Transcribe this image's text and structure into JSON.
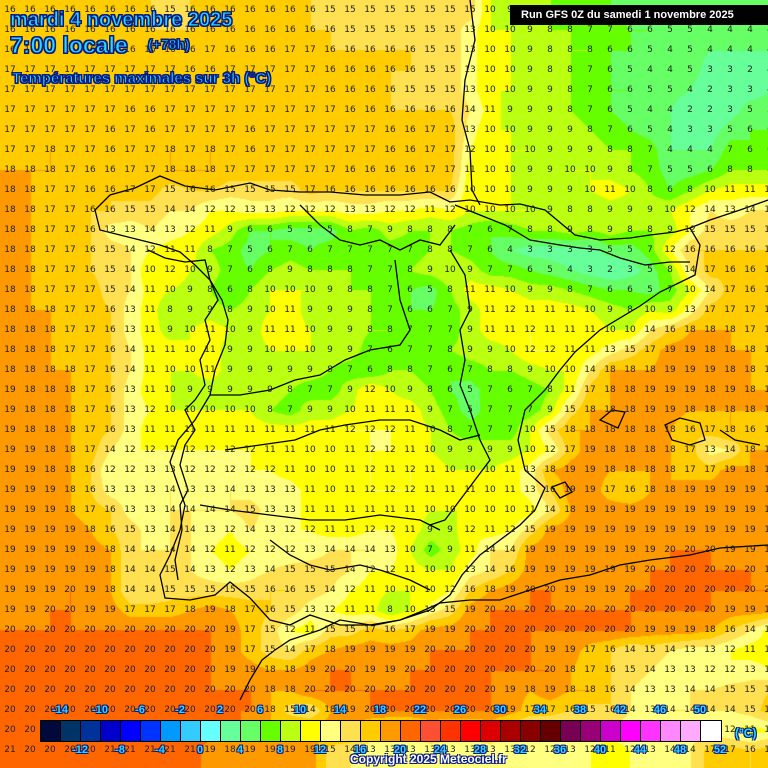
{
  "header": {
    "date": "mardi 4 novembre 2025",
    "time": "7:00 locale",
    "lead": "(+78h)",
    "parameter": "Températures maximales sur 3h (°C)",
    "run": "Run GFS 0Z du samedi 1 novembre 2025"
  },
  "footer": {
    "copyright": "Copyright 2025 Meteociel.fr",
    "unit": "(°C)"
  },
  "legend": {
    "colors": [
      "#000a3a",
      "#003366",
      "#003399",
      "#0000cc",
      "#0000ff",
      "#0033ff",
      "#0099ff",
      "#33ccff",
      "#66ffff",
      "#66ff99",
      "#66ff66",
      "#66ff00",
      "#bbff11",
      "#ffff00",
      "#ffff80",
      "#ffe050",
      "#ffcc00",
      "#ff9900",
      "#ff6600",
      "#ff4f33",
      "#ff3300",
      "#ff0000",
      "#dd0000",
      "#aa0000",
      "#880000",
      "#660000",
      "#770055",
      "#990077",
      "#cc00cc",
      "#ff00ff",
      "#ff33ff",
      "#ff88ff",
      "#ffaaff",
      "#ffffff"
    ],
    "top_labels": [
      "-14",
      "-10",
      "-6",
      "-2",
      "2",
      "6",
      "10",
      "14",
      "18",
      "22",
      "26",
      "30",
      "34",
      "38",
      "42",
      "46",
      "50"
    ],
    "bottom_labels": [
      "-12",
      "-8",
      "-4",
      "0",
      "4",
      "8",
      "12",
      "16",
      "20",
      "24",
      "28",
      "32",
      "36",
      "40",
      "44",
      "48",
      "52"
    ]
  },
  "chart_data": {
    "type": "heatmap",
    "title": "Températures maximales sur 3h (°C)",
    "subtitle": "mardi 4 novembre 2025 7:00 locale (+78h) — Run GFS 0Z du samedi 1 novembre 2025",
    "region": "Iberian Peninsula",
    "grid_spacing_px": 20,
    "cols": 39,
    "rows": 38,
    "values": [
      [
        16,
        16,
        16,
        16,
        16,
        16,
        16,
        16,
        15,
        16,
        16,
        16,
        16,
        16,
        16,
        16,
        15,
        15,
        15,
        15,
        15,
        15,
        15,
        15,
        10,
        9,
        8,
        8,
        7,
        7,
        6,
        5,
        5,
        5,
        5,
        5,
        5,
        4,
        4
      ],
      [
        16,
        16,
        16,
        16,
        16,
        16,
        16,
        16,
        16,
        16,
        16,
        16,
        16,
        16,
        16,
        16,
        16,
        15,
        15,
        15,
        15,
        15,
        15,
        13,
        10,
        10,
        9,
        8,
        8,
        7,
        7,
        6,
        6,
        5,
        5,
        4,
        4,
        4,
        4
      ],
      [
        16,
        16,
        16,
        16,
        16,
        16,
        16,
        16,
        16,
        16,
        17,
        16,
        16,
        16,
        17,
        17,
        16,
        16,
        16,
        16,
        16,
        15,
        15,
        13,
        10,
        10,
        9,
        8,
        8,
        8,
        6,
        6,
        5,
        4,
        5,
        4,
        4,
        4,
        4
      ],
      [
        17,
        17,
        17,
        17,
        17,
        17,
        17,
        17,
        17,
        16,
        16,
        17,
        17,
        17,
        17,
        17,
        16,
        16,
        16,
        16,
        16,
        15,
        15,
        13,
        10,
        10,
        9,
        8,
        8,
        7,
        6,
        5,
        4,
        4,
        5,
        3,
        3,
        2,
        4
      ],
      [
        17,
        17,
        17,
        17,
        17,
        17,
        17,
        17,
        17,
        17,
        17,
        17,
        17,
        17,
        17,
        17,
        16,
        16,
        16,
        16,
        15,
        15,
        15,
        13,
        10,
        10,
        9,
        9,
        8,
        7,
        6,
        6,
        5,
        5,
        4,
        2,
        3,
        3,
        4
      ],
      [
        17,
        17,
        17,
        17,
        17,
        17,
        16,
        16,
        17,
        17,
        17,
        17,
        17,
        17,
        17,
        17,
        17,
        16,
        16,
        16,
        16,
        16,
        16,
        14,
        11,
        9,
        9,
        9,
        8,
        7,
        6,
        5,
        4,
        4,
        2,
        2,
        3,
        5,
        5
      ],
      [
        17,
        17,
        17,
        17,
        17,
        16,
        17,
        16,
        17,
        17,
        17,
        17,
        16,
        17,
        17,
        17,
        17,
        17,
        17,
        16,
        16,
        17,
        17,
        13,
        10,
        10,
        9,
        9,
        9,
        8,
        7,
        6,
        5,
        4,
        3,
        3,
        5,
        6,
        6
      ],
      [
        17,
        17,
        18,
        17,
        17,
        16,
        17,
        17,
        18,
        17,
        18,
        17,
        16,
        17,
        17,
        17,
        17,
        17,
        17,
        16,
        16,
        17,
        17,
        12,
        10,
        10,
        10,
        9,
        9,
        9,
        8,
        8,
        7,
        4,
        4,
        4,
        7,
        6,
        6
      ],
      [
        18,
        18,
        18,
        17,
        16,
        16,
        17,
        17,
        18,
        18,
        18,
        17,
        17,
        17,
        17,
        17,
        17,
        16,
        16,
        16,
        16,
        17,
        17,
        11,
        10,
        10,
        9,
        9,
        10,
        10,
        9,
        8,
        7,
        5,
        5,
        6,
        8,
        8,
        8
      ],
      [
        18,
        18,
        17,
        17,
        16,
        16,
        17,
        17,
        15,
        16,
        16,
        15,
        15,
        15,
        15,
        17,
        16,
        16,
        16,
        16,
        16,
        16,
        16,
        10,
        10,
        10,
        9,
        9,
        9,
        10,
        11,
        10,
        8,
        6,
        8,
        10,
        11,
        11,
        11
      ],
      [
        18,
        18,
        17,
        17,
        16,
        16,
        15,
        15,
        14,
        14,
        12,
        12,
        13,
        13,
        12,
        12,
        12,
        13,
        13,
        12,
        12,
        11,
        12,
        10,
        10,
        10,
        10,
        9,
        8,
        8,
        9,
        9,
        9,
        10,
        12,
        14,
        13,
        14,
        14
      ],
      [
        18,
        18,
        17,
        17,
        16,
        13,
        13,
        14,
        13,
        12,
        11,
        9,
        6,
        6,
        5,
        5,
        5,
        8,
        7,
        9,
        8,
        8,
        8,
        7,
        6,
        7,
        8,
        8,
        9,
        8,
        9,
        8,
        8,
        9,
        12,
        15,
        15,
        15,
        15
      ],
      [
        18,
        18,
        17,
        17,
        16,
        15,
        14,
        12,
        11,
        11,
        8,
        7,
        5,
        6,
        7,
        6,
        7,
        7,
        7,
        7,
        7,
        8,
        8,
        7,
        6,
        4,
        3,
        3,
        3,
        3,
        5,
        5,
        7,
        12,
        16,
        16,
        16,
        16,
        16
      ],
      [
        18,
        18,
        17,
        17,
        16,
        15,
        14,
        10,
        12,
        10,
        9,
        7,
        6,
        8,
        9,
        8,
        8,
        8,
        7,
        7,
        8,
        9,
        10,
        9,
        7,
        7,
        6,
        5,
        4,
        3,
        2,
        3,
        5,
        8,
        14,
        17,
        16,
        16,
        16
      ],
      [
        18,
        18,
        17,
        17,
        17,
        15,
        14,
        11,
        10,
        9,
        8,
        6,
        8,
        10,
        10,
        10,
        9,
        8,
        8,
        7,
        6,
        5,
        8,
        11,
        11,
        10,
        9,
        9,
        8,
        7,
        6,
        6,
        5,
        7,
        10,
        14,
        17,
        16,
        16
      ],
      [
        18,
        18,
        18,
        17,
        17,
        16,
        13,
        11,
        8,
        9,
        9,
        8,
        9,
        10,
        11,
        9,
        9,
        9,
        8,
        7,
        6,
        6,
        7,
        9,
        11,
        12,
        11,
        11,
        11,
        10,
        9,
        8,
        10,
        9,
        13,
        17,
        17,
        17,
        17
      ],
      [
        18,
        18,
        18,
        17,
        17,
        16,
        13,
        11,
        9,
        10,
        11,
        10,
        9,
        11,
        11,
        10,
        9,
        9,
        8,
        8,
        7,
        7,
        7,
        9,
        11,
        11,
        12,
        11,
        11,
        11,
        10,
        10,
        14,
        16,
        18,
        18,
        18,
        17,
        17
      ],
      [
        18,
        18,
        18,
        17,
        17,
        16,
        14,
        11,
        11,
        10,
        11,
        9,
        9,
        10,
        10,
        10,
        9,
        9,
        7,
        6,
        7,
        7,
        8,
        9,
        9,
        10,
        12,
        12,
        11,
        11,
        13,
        15,
        17,
        19,
        19,
        18,
        18,
        18,
        17
      ],
      [
        18,
        18,
        18,
        18,
        17,
        16,
        14,
        11,
        10,
        10,
        11,
        9,
        9,
        9,
        9,
        9,
        8,
        7,
        6,
        8,
        8,
        7,
        6,
        7,
        8,
        8,
        9,
        10,
        10,
        14,
        18,
        18,
        18,
        19,
        19,
        19,
        18,
        18,
        17
      ],
      [
        19,
        18,
        18,
        18,
        17,
        16,
        13,
        11,
        10,
        9,
        9,
        9,
        9,
        9,
        8,
        7,
        7,
        9,
        12,
        10,
        9,
        8,
        6,
        5,
        7,
        6,
        7,
        8,
        11,
        17,
        18,
        18,
        19,
        19,
        19,
        18,
        19,
        18,
        18
      ],
      [
        19,
        18,
        18,
        18,
        17,
        16,
        13,
        12,
        10,
        10,
        10,
        10,
        10,
        8,
        7,
        9,
        9,
        10,
        11,
        11,
        11,
        9,
        7,
        5,
        7,
        7,
        7,
        9,
        15,
        18,
        18,
        18,
        19,
        19,
        18,
        18,
        18,
        18,
        18
      ],
      [
        19,
        18,
        18,
        18,
        17,
        16,
        13,
        11,
        11,
        11,
        11,
        11,
        11,
        11,
        11,
        11,
        11,
        12,
        12,
        12,
        11,
        10,
        8,
        7,
        7,
        7,
        10,
        15,
        18,
        18,
        18,
        18,
        18,
        18,
        16,
        17,
        18,
        16,
        18
      ],
      [
        19,
        19,
        18,
        18,
        17,
        14,
        12,
        12,
        12,
        12,
        12,
        12,
        12,
        11,
        11,
        10,
        10,
        11,
        12,
        12,
        11,
        10,
        9,
        9,
        9,
        9,
        10,
        12,
        17,
        19,
        18,
        18,
        18,
        18,
        17,
        13,
        14,
        18,
        18
      ],
      [
        19,
        19,
        18,
        18,
        16,
        12,
        12,
        13,
        13,
        12,
        12,
        12,
        12,
        12,
        11,
        10,
        10,
        11,
        12,
        11,
        12,
        11,
        10,
        10,
        10,
        11,
        13,
        18,
        19,
        19,
        18,
        18,
        18,
        18,
        17,
        17,
        19,
        18,
        18
      ],
      [
        19,
        19,
        19,
        18,
        16,
        13,
        13,
        13,
        14,
        13,
        13,
        14,
        13,
        13,
        13,
        11,
        10,
        11,
        12,
        12,
        12,
        11,
        11,
        11,
        10,
        11,
        13,
        16,
        19,
        19,
        17,
        16,
        18,
        18,
        19,
        19,
        19,
        19,
        18
      ],
      [
        19,
        19,
        19,
        18,
        17,
        16,
        13,
        13,
        14,
        14,
        14,
        14,
        15,
        13,
        13,
        11,
        11,
        11,
        11,
        11,
        11,
        10,
        10,
        10,
        10,
        10,
        11,
        14,
        18,
        19,
        19,
        19,
        19,
        19,
        19,
        19,
        19,
        19,
        19
      ],
      [
        19,
        19,
        19,
        19,
        18,
        16,
        15,
        13,
        14,
        14,
        13,
        12,
        14,
        13,
        12,
        12,
        11,
        11,
        12,
        12,
        11,
        9,
        9,
        12,
        11,
        12,
        15,
        19,
        19,
        19,
        19,
        19,
        19,
        19,
        19,
        19,
        19,
        19,
        19
      ],
      [
        19,
        19,
        19,
        19,
        19,
        18,
        14,
        14,
        14,
        14,
        12,
        11,
        12,
        12,
        12,
        13,
        14,
        14,
        14,
        13,
        10,
        7,
        9,
        11,
        14,
        14,
        19,
        19,
        19,
        19,
        19,
        19,
        19,
        20,
        20,
        20,
        19,
        19,
        19
      ],
      [
        19,
        19,
        19,
        19,
        19,
        18,
        14,
        14,
        15,
        14,
        13,
        12,
        13,
        14,
        15,
        15,
        15,
        14,
        12,
        12,
        11,
        10,
        10,
        13,
        14,
        16,
        19,
        19,
        19,
        19,
        19,
        19,
        20,
        20,
        20,
        20,
        20,
        20,
        19
      ],
      [
        19,
        19,
        19,
        20,
        19,
        18,
        14,
        14,
        15,
        15,
        15,
        15,
        15,
        16,
        16,
        15,
        14,
        12,
        11,
        10,
        10,
        10,
        12,
        16,
        18,
        19,
        20,
        20,
        19,
        19,
        19,
        20,
        20,
        20,
        20,
        20,
        20,
        20,
        20
      ],
      [
        19,
        19,
        20,
        20,
        19,
        19,
        17,
        17,
        17,
        18,
        19,
        18,
        17,
        16,
        15,
        13,
        12,
        11,
        11,
        8,
        10,
        13,
        15,
        19,
        20,
        20,
        20,
        20,
        20,
        20,
        20,
        20,
        20,
        20,
        20,
        20,
        19,
        19,
        19
      ],
      [
        20,
        20,
        20,
        20,
        20,
        20,
        20,
        20,
        20,
        20,
        20,
        19,
        17,
        15,
        12,
        11,
        15,
        15,
        17,
        16,
        17,
        19,
        19,
        20,
        20,
        20,
        20,
        20,
        20,
        20,
        20,
        20,
        19,
        19,
        19,
        18,
        16,
        14,
        11
      ],
      [
        20,
        20,
        20,
        20,
        20,
        20,
        20,
        20,
        20,
        20,
        20,
        19,
        17,
        15,
        14,
        17,
        18,
        19,
        19,
        19,
        19,
        20,
        20,
        20,
        20,
        20,
        20,
        19,
        19,
        17,
        16,
        14,
        15,
        14,
        13,
        13,
        12,
        11,
        11
      ],
      [
        20,
        20,
        20,
        20,
        20,
        20,
        20,
        20,
        20,
        20,
        20,
        19,
        19,
        18,
        18,
        19,
        20,
        20,
        19,
        19,
        20,
        20,
        20,
        20,
        20,
        20,
        20,
        20,
        18,
        17,
        16,
        15,
        14,
        13,
        13,
        12,
        12,
        13,
        12
      ],
      [
        20,
        20,
        20,
        20,
        20,
        20,
        20,
        20,
        20,
        20,
        20,
        20,
        20,
        18,
        18,
        20,
        20,
        20,
        20,
        20,
        20,
        20,
        20,
        20,
        20,
        19,
        18,
        19,
        18,
        18,
        16,
        14,
        13,
        13,
        14,
        14,
        15,
        15,
        16
      ],
      [
        20,
        20,
        20,
        20,
        20,
        20,
        20,
        20,
        20,
        20,
        20,
        20,
        20,
        18,
        15,
        14,
        18,
        19,
        20,
        20,
        20,
        20,
        20,
        20,
        20,
        19,
        17,
        17,
        16,
        15,
        16,
        14,
        13,
        14,
        14,
        14,
        14,
        15,
        17
      ],
      [
        20,
        20,
        20,
        20,
        20,
        20,
        20,
        21,
        21,
        21,
        21,
        21,
        19,
        18,
        19,
        19,
        19,
        19,
        15,
        14,
        14,
        16,
        15,
        15,
        16,
        14,
        13,
        13,
        13,
        13,
        13,
        13,
        12,
        13,
        13,
        13,
        12,
        11,
        12
      ],
      [
        21,
        20,
        20,
        20,
        20,
        21,
        21,
        21,
        21,
        21,
        19,
        18,
        19,
        19,
        19,
        19,
        15,
        14,
        13,
        13,
        13,
        13,
        13,
        13,
        13,
        13,
        12,
        12,
        13,
        12,
        11,
        12,
        13,
        14,
        14,
        17,
        17,
        16,
        17
      ]
    ]
  }
}
